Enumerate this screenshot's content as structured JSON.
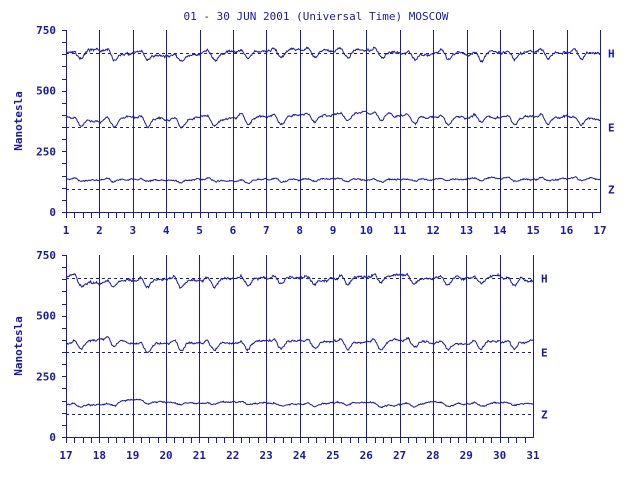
{
  "chart_data": {
    "type": "line",
    "title": "01 - 30 JUN 2001 (Universal Time) MOSCOW",
    "ylabel": "Nanotesla",
    "colors": {
      "ink": "#1a1aa6",
      "background": "#ffffff"
    },
    "grid": "vertical lines at each day boundary",
    "panels": [
      {
        "xlim": [
          1,
          17
        ],
        "xticks": [
          "1",
          "2",
          "3",
          "4",
          "5",
          "6",
          "7",
          "8",
          "9",
          "10",
          "11",
          "12",
          "13",
          "14",
          "15",
          "16",
          "17"
        ],
        "ylim": [
          0,
          750
        ],
        "yticks": [
          "0",
          "250",
          "500",
          "750"
        ],
        "series": [
          {
            "name": "H",
            "baseline": 655,
            "daily": [
              [
                1,
                660
              ],
              [
                2,
                668
              ],
              [
                3,
                650
              ],
              [
                4,
                647
              ],
              [
                5,
                652
              ],
              [
                6,
                655
              ],
              [
                7,
                660
              ],
              [
                8,
                662
              ],
              [
                9,
                665
              ],
              [
                10,
                665
              ],
              [
                11,
                652
              ],
              [
                12,
                654
              ],
              [
                13,
                656
              ],
              [
                14,
                656
              ],
              [
                15,
                654
              ],
              [
                16,
                658
              ],
              [
                17,
                660
              ]
            ]
          },
          {
            "name": "E",
            "baseline": 350,
            "daily": [
              [
                1,
                390
              ],
              [
                2,
                370
              ],
              [
                3,
                392
              ],
              [
                4,
                380
              ],
              [
                5,
                385
              ],
              [
                6,
                388
              ],
              [
                7,
                392
              ],
              [
                8,
                398
              ],
              [
                9,
                400
              ],
              [
                10,
                410
              ],
              [
                11,
                395
              ],
              [
                12,
                390
              ],
              [
                13,
                395
              ],
              [
                14,
                392
              ],
              [
                15,
                388
              ],
              [
                16,
                392
              ],
              [
                17,
                385
              ]
            ]
          },
          {
            "name": "Z",
            "baseline": 95,
            "daily": [
              [
                1,
                135
              ],
              [
                2,
                130
              ],
              [
                3,
                132
              ],
              [
                4,
                133
              ],
              [
                5,
                132
              ],
              [
                6,
                132
              ],
              [
                7,
                133
              ],
              [
                8,
                135
              ],
              [
                9,
                137
              ],
              [
                10,
                132
              ],
              [
                11,
                135
              ],
              [
                12,
                136
              ],
              [
                13,
                137
              ],
              [
                14,
                138
              ],
              [
                15,
                135
              ],
              [
                16,
                138
              ],
              [
                17,
                140
              ]
            ]
          }
        ]
      },
      {
        "xlim": [
          17,
          31
        ],
        "xticks": [
          "17",
          "18",
          "19",
          "20",
          "21",
          "22",
          "23",
          "24",
          "25",
          "26",
          "27",
          "28",
          "29",
          "30",
          "31"
        ],
        "ylim": [
          0,
          750
        ],
        "yticks": [
          "0",
          "250",
          "500",
          "750"
        ],
        "series": [
          {
            "name": "H",
            "baseline": 655,
            "daily": [
              [
                17,
                660
              ],
              [
                18,
                640
              ],
              [
                19,
                648
              ],
              [
                20,
                652
              ],
              [
                21,
                650
              ],
              [
                22,
                654
              ],
              [
                23,
                656
              ],
              [
                24,
                656
              ],
              [
                25,
                655
              ],
              [
                26,
                668
              ],
              [
                27,
                660
              ],
              [
                28,
                654
              ],
              [
                29,
                656
              ],
              [
                30,
                658
              ],
              [
                31,
                650
              ]
            ]
          },
          {
            "name": "E",
            "baseline": 350,
            "daily": [
              [
                17,
                385
              ],
              [
                18,
                405
              ],
              [
                19,
                385
              ],
              [
                20,
                385
              ],
              [
                21,
                388
              ],
              [
                22,
                390
              ],
              [
                23,
                392
              ],
              [
                24,
                395
              ],
              [
                25,
                390
              ],
              [
                26,
                395
              ],
              [
                27,
                400
              ],
              [
                28,
                390
              ],
              [
                29,
                392
              ],
              [
                30,
                395
              ],
              [
                31,
                392
              ]
            ]
          },
          {
            "name": "Z",
            "baseline": 95,
            "daily": [
              [
                17,
                138
              ],
              [
                18,
                130
              ],
              [
                19,
                155
              ],
              [
                20,
                140
              ],
              [
                21,
                140
              ],
              [
                22,
                142
              ],
              [
                23,
                138
              ],
              [
                24,
                137
              ],
              [
                25,
                136
              ],
              [
                26,
                140
              ],
              [
                27,
                132
              ],
              [
                28,
                138
              ],
              [
                29,
                136
              ],
              [
                30,
                138
              ],
              [
                31,
                140
              ]
            ]
          }
        ]
      }
    ]
  }
}
